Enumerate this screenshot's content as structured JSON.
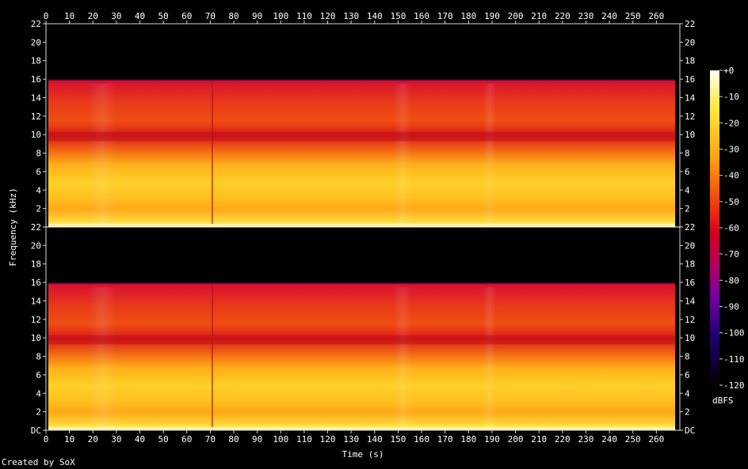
{
  "chart_data": {
    "type": "heatmap",
    "xlabel": "Time (s)",
    "ylabel": "Frequency (kHz)",
    "xlim": [
      0,
      270
    ],
    "ylim": [
      0,
      22
    ],
    "x_ticks": [
      "0",
      "10",
      "20",
      "30",
      "40",
      "50",
      "60",
      "70",
      "80",
      "90",
      "100",
      "110",
      "120",
      "130",
      "140",
      "150",
      "160",
      "170",
      "180",
      "190",
      "200",
      "210",
      "220",
      "230",
      "240",
      "250",
      "260"
    ],
    "y_ticks": [
      "DC",
      "2",
      "4",
      "6",
      "8",
      "10",
      "12",
      "14",
      "16",
      "18",
      "20",
      "22"
    ],
    "channels": [
      {
        "name": "",
        "duration_s": 268,
        "cutoff_khz": 16
      },
      {
        "name": "",
        "duration_s": 268,
        "cutoff_khz": 16
      }
    ],
    "colorbar": {
      "label": "dBFS",
      "ticks": [
        "+0",
        "-10",
        "-20",
        "-30",
        "-40",
        "-50",
        "-60",
        "-70",
        "-80",
        "-90",
        "-100",
        "-110",
        "-120"
      ],
      "range": [
        -120,
        0
      ]
    },
    "colors": {
      "background": "#000000",
      "axis": "#d8d8d8",
      "text": "#ffffff"
    }
  },
  "footer": {
    "credit": "Created by SoX"
  }
}
